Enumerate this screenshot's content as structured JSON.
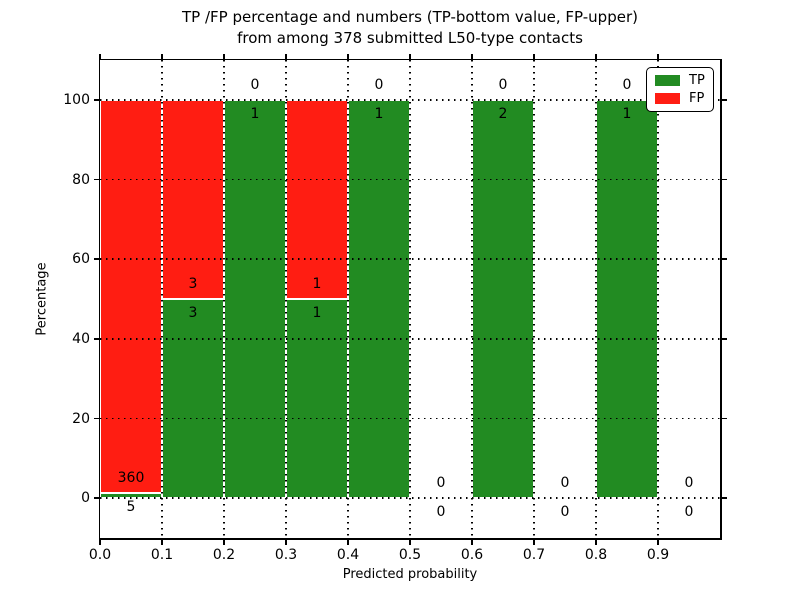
{
  "chart_data": {
    "type": "bar",
    "stacked": true,
    "title_line1": "TP /FP percentage and numbers (TP-bottom value, FP-upper)",
    "title_line2": "from among 378 submitted L50-type contacts",
    "xlabel": "Predicted probability",
    "ylabel": "Percentage",
    "xlim": [
      0.0,
      1.0
    ],
    "ylim": [
      -10,
      110
    ],
    "bin_width": 0.1,
    "grid": "dotted, both axes, drawn over bars",
    "legend_position": "upper right",
    "series": [
      {
        "name": "TP",
        "color": "#228B22"
      },
      {
        "name": "FP",
        "color": "#FF1D12"
      }
    ],
    "xticks": [
      {
        "label": "0.0",
        "v": 0.0
      },
      {
        "label": "0.1",
        "v": 0.1
      },
      {
        "label": "0.2",
        "v": 0.2
      },
      {
        "label": "0.3",
        "v": 0.3
      },
      {
        "label": "0.4",
        "v": 0.4
      },
      {
        "label": "0.5",
        "v": 0.5
      },
      {
        "label": "0.6",
        "v": 0.6
      },
      {
        "label": "0.7",
        "v": 0.7
      },
      {
        "label": "0.8",
        "v": 0.8
      },
      {
        "label": "0.9",
        "v": 0.9
      }
    ],
    "yticks": [
      {
        "label": "0",
        "v": 0
      },
      {
        "label": "20",
        "v": 20
      },
      {
        "label": "40",
        "v": 40
      },
      {
        "label": "60",
        "v": 60
      },
      {
        "label": "80",
        "v": 80
      },
      {
        "label": "100",
        "v": 100
      }
    ],
    "bins": [
      {
        "x0": 0.0,
        "tp": 5,
        "fp": 360
      },
      {
        "x0": 0.1,
        "tp": 3,
        "fp": 3
      },
      {
        "x0": 0.2,
        "tp": 1,
        "fp": 0
      },
      {
        "x0": 0.3,
        "tp": 1,
        "fp": 1
      },
      {
        "x0": 0.4,
        "tp": 1,
        "fp": 0
      },
      {
        "x0": 0.5,
        "tp": 0,
        "fp": 0
      },
      {
        "x0": 0.6,
        "tp": 2,
        "fp": 0
      },
      {
        "x0": 0.7,
        "tp": 0,
        "fp": 0
      },
      {
        "x0": 0.8,
        "tp": 1,
        "fp": 0
      },
      {
        "x0": 0.9,
        "tp": 0,
        "fp": 0
      }
    ]
  }
}
